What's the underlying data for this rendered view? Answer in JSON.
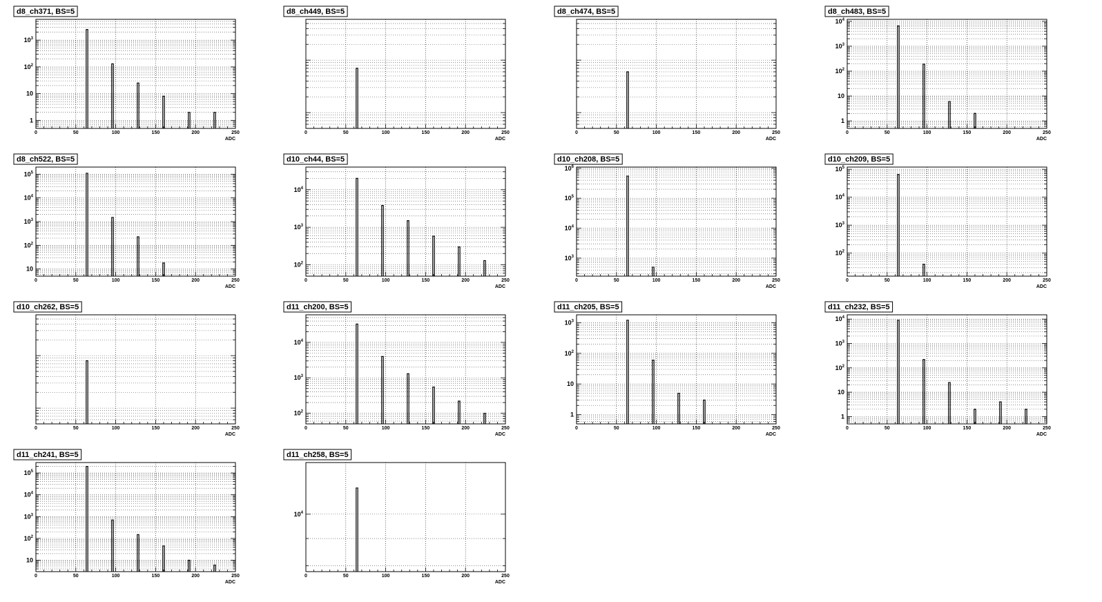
{
  "chart_data": [
    {
      "type": "bar",
      "title": "d8_ch371, BS=5",
      "xlabel": "ADC",
      "xlim": [
        0,
        250
      ],
      "log_y": true,
      "ylim": [
        0.5,
        6000
      ],
      "yticks": [
        {
          "v": 1,
          "base": "1"
        },
        {
          "v": 10,
          "base": "10"
        },
        {
          "v": 100,
          "base": "10",
          "exp": "2"
        },
        {
          "v": 1000,
          "base": "10",
          "exp": "3"
        }
      ],
      "grid": true,
      "peaks": [
        {
          "x": 64,
          "y": 2500
        },
        {
          "x": 96,
          "y": 130
        },
        {
          "x": 128,
          "y": 25
        },
        {
          "x": 160,
          "y": 8
        },
        {
          "x": 192,
          "y": 2
        },
        {
          "x": 224,
          "y": 2
        }
      ]
    },
    {
      "type": "bar",
      "title": "d8_ch449, BS=5",
      "xlabel": "ADC",
      "xlim": [
        0,
        250
      ],
      "log_y": true,
      "ylim": [
        0.5,
        60
      ],
      "yticks": [],
      "grid": true,
      "peaks": [
        {
          "x": 64,
          "y": 7
        }
      ]
    },
    {
      "type": "bar",
      "title": "d8_ch474, BS=5",
      "xlabel": "ADC",
      "xlim": [
        0,
        250
      ],
      "log_y": true,
      "ylim": [
        0.5,
        60
      ],
      "yticks": [],
      "grid": true,
      "peaks": [
        {
          "x": 64,
          "y": 6
        }
      ]
    },
    {
      "type": "bar",
      "title": "d8_ch483, BS=5",
      "xlabel": "ADC",
      "xlim": [
        0,
        250
      ],
      "log_y": true,
      "ylim": [
        0.5,
        12000
      ],
      "yticks": [
        {
          "v": 1,
          "base": "1"
        },
        {
          "v": 10,
          "base": "10"
        },
        {
          "v": 100,
          "base": "10",
          "exp": "2"
        },
        {
          "v": 1000,
          "base": "10",
          "exp": "3"
        },
        {
          "v": 10000,
          "base": "10",
          "exp": "4"
        }
      ],
      "grid": true,
      "peaks": [
        {
          "x": 64,
          "y": 6500
        },
        {
          "x": 96,
          "y": 190
        },
        {
          "x": 128,
          "y": 6
        },
        {
          "x": 160,
          "y": 2
        }
      ]
    },
    {
      "type": "bar",
      "title": "d8_ch522, BS=5",
      "xlabel": "ADC",
      "xlim": [
        0,
        250
      ],
      "log_y": true,
      "ylim": [
        5,
        200000
      ],
      "yticks": [
        {
          "v": 10,
          "base": "10"
        },
        {
          "v": 100,
          "base": "10",
          "exp": "2"
        },
        {
          "v": 1000,
          "base": "10",
          "exp": "3"
        },
        {
          "v": 10000,
          "base": "10",
          "exp": "4"
        },
        {
          "v": 100000,
          "base": "10",
          "exp": "5"
        }
      ],
      "grid": true,
      "peaks": [
        {
          "x": 64,
          "y": 110000
        },
        {
          "x": 96,
          "y": 1500
        },
        {
          "x": 128,
          "y": 230
        },
        {
          "x": 160,
          "y": 18
        }
      ]
    },
    {
      "type": "bar",
      "title": "d10_ch44, BS=5",
      "xlabel": "ADC",
      "xlim": [
        0,
        250
      ],
      "log_y": true,
      "ylim": [
        50,
        40000
      ],
      "yticks": [
        {
          "v": 100,
          "base": "10",
          "exp": "2"
        },
        {
          "v": 1000,
          "base": "10",
          "exp": "3"
        },
        {
          "v": 10000,
          "base": "10",
          "exp": "4"
        }
      ],
      "grid": true,
      "peaks": [
        {
          "x": 64,
          "y": 20000
        },
        {
          "x": 96,
          "y": 3800
        },
        {
          "x": 128,
          "y": 1500
        },
        {
          "x": 160,
          "y": 580
        },
        {
          "x": 192,
          "y": 300
        },
        {
          "x": 224,
          "y": 130
        }
      ]
    },
    {
      "type": "bar",
      "title": "d10_ch208, BS=5",
      "xlabel": "ADC",
      "xlim": [
        0,
        250
      ],
      "log_y": true,
      "ylim": [
        250,
        1100000
      ],
      "yticks": [
        {
          "v": 1000,
          "base": "10",
          "exp": "3"
        },
        {
          "v": 10000,
          "base": "10",
          "exp": "4"
        },
        {
          "v": 100000,
          "base": "10",
          "exp": "5"
        },
        {
          "v": 1000000,
          "base": "10",
          "exp": "6"
        }
      ],
      "grid": true,
      "peaks": [
        {
          "x": 64,
          "y": 550000
        },
        {
          "x": 96,
          "y": 500
        }
      ]
    },
    {
      "type": "bar",
      "title": "d10_ch209, BS=5",
      "xlabel": "ADC",
      "xlim": [
        0,
        250
      ],
      "log_y": true,
      "ylim": [
        15,
        120000
      ],
      "yticks": [
        {
          "v": 100,
          "base": "10",
          "exp": "2"
        },
        {
          "v": 1000,
          "base": "10",
          "exp": "3"
        },
        {
          "v": 10000,
          "base": "10",
          "exp": "4"
        },
        {
          "v": 100000,
          "base": "10",
          "exp": "5"
        }
      ],
      "grid": true,
      "peaks": [
        {
          "x": 64,
          "y": 65000
        },
        {
          "x": 96,
          "y": 40
        }
      ]
    },
    {
      "type": "bar",
      "title": "d10_ch262, BS=5",
      "xlabel": "ADC",
      "xlim": [
        0,
        250
      ],
      "log_y": true,
      "ylim": [
        0.5,
        60
      ],
      "yticks": [],
      "grid": true,
      "peaks": [
        {
          "x": 64,
          "y": 8
        }
      ]
    },
    {
      "type": "bar",
      "title": "d11_ch200, BS=5",
      "xlabel": "ADC",
      "xlim": [
        0,
        250
      ],
      "log_y": true,
      "ylim": [
        50,
        60000
      ],
      "yticks": [
        {
          "v": 100,
          "base": "10",
          "exp": "2"
        },
        {
          "v": 1000,
          "base": "10",
          "exp": "3"
        },
        {
          "v": 10000,
          "base": "10",
          "exp": "4"
        }
      ],
      "grid": true,
      "peaks": [
        {
          "x": 64,
          "y": 33000
        },
        {
          "x": 96,
          "y": 4000
        },
        {
          "x": 128,
          "y": 1300
        },
        {
          "x": 160,
          "y": 550
        },
        {
          "x": 192,
          "y": 220
        },
        {
          "x": 224,
          "y": 100
        }
      ]
    },
    {
      "type": "bar",
      "title": "d11_ch205, BS=5",
      "xlabel": "ADC",
      "xlim": [
        0,
        250
      ],
      "log_y": true,
      "ylim": [
        0.5,
        1800
      ],
      "yticks": [
        {
          "v": 1,
          "base": "1"
        },
        {
          "v": 10,
          "base": "10"
        },
        {
          "v": 100,
          "base": "10",
          "exp": "2"
        },
        {
          "v": 1000,
          "base": "10",
          "exp": "3"
        }
      ],
      "grid": true,
      "peaks": [
        {
          "x": 64,
          "y": 1200
        },
        {
          "x": 96,
          "y": 60
        },
        {
          "x": 128,
          "y": 5
        },
        {
          "x": 160,
          "y": 3
        }
      ]
    },
    {
      "type": "bar",
      "title": "d11_ch232, BS=5",
      "xlabel": "ADC",
      "xlim": [
        0,
        250
      ],
      "log_y": true,
      "ylim": [
        0.5,
        15000
      ],
      "yticks": [
        {
          "v": 1,
          "base": "1"
        },
        {
          "v": 10,
          "base": "10"
        },
        {
          "v": 100,
          "base": "10",
          "exp": "2"
        },
        {
          "v": 1000,
          "base": "10",
          "exp": "3"
        },
        {
          "v": 10000,
          "base": "10",
          "exp": "4"
        }
      ],
      "grid": true,
      "peaks": [
        {
          "x": 64,
          "y": 9000
        },
        {
          "x": 96,
          "y": 220
        },
        {
          "x": 128,
          "y": 25
        },
        {
          "x": 160,
          "y": 2
        },
        {
          "x": 192,
          "y": 4
        },
        {
          "x": 224,
          "y": 2
        }
      ]
    },
    {
      "type": "bar",
      "title": "d11_ch241, BS=5",
      "xlabel": "ADC",
      "xlim": [
        0,
        250
      ],
      "log_y": true,
      "ylim": [
        3,
        300000
      ],
      "yticks": [
        {
          "v": 10,
          "base": "10"
        },
        {
          "v": 100,
          "base": "10",
          "exp": "2"
        },
        {
          "v": 1000,
          "base": "10",
          "exp": "3"
        },
        {
          "v": 10000,
          "base": "10",
          "exp": "4"
        },
        {
          "v": 100000,
          "base": "10",
          "exp": "5"
        }
      ],
      "grid": true,
      "peaks": [
        {
          "x": 64,
          "y": 200000
        },
        {
          "x": 96,
          "y": 700
        },
        {
          "x": 128,
          "y": 150
        },
        {
          "x": 160,
          "y": 45
        },
        {
          "x": 192,
          "y": 10
        },
        {
          "x": 224,
          "y": 6
        }
      ]
    },
    {
      "type": "bar",
      "title": "d11_ch258, BS=5",
      "xlabel": "ADC",
      "xlim": [
        0,
        250
      ],
      "log_y": true,
      "ylim": [
        7800,
        12500
      ],
      "yticks": [
        {
          "v": 10000,
          "base": "10",
          "exp": "4"
        }
      ],
      "grid": true,
      "peaks": [
        {
          "x": 64,
          "y": 11200
        }
      ]
    }
  ],
  "xticks": [
    0,
    50,
    100,
    150,
    200,
    250
  ]
}
